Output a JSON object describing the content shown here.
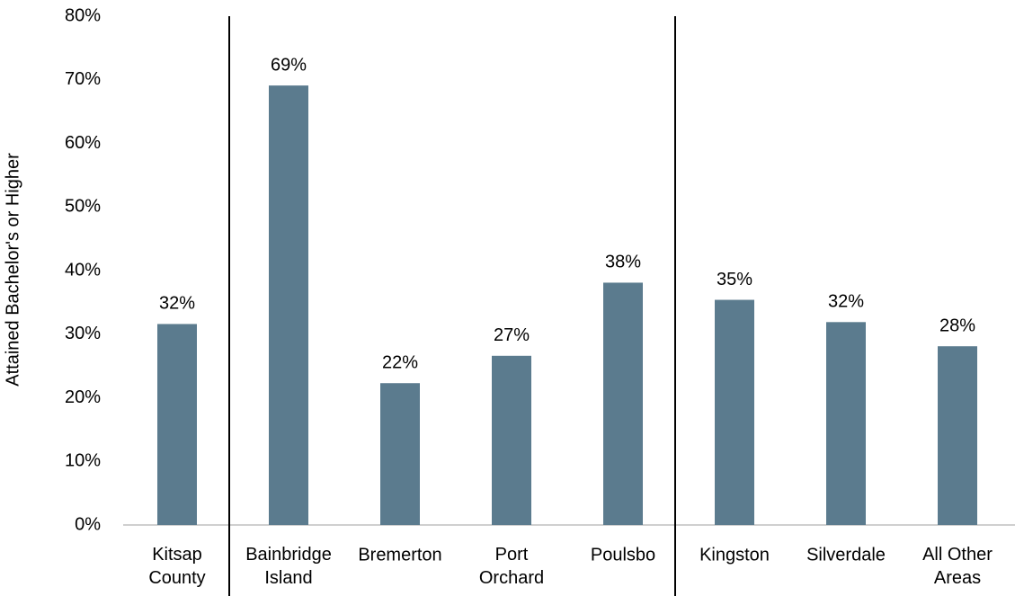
{
  "chart_data": {
    "type": "bar",
    "y_axis_label": "Attained Bachelor's or Higher",
    "categories": [
      "Kitsap\nCounty",
      "Bainbridge\nIsland",
      "Bremerton",
      "Port\nOrchard",
      "Poulsbo",
      "Kingston",
      "Silverdale",
      "All Other\nAreas"
    ],
    "values": [
      31.6,
      69.1,
      22.3,
      26.6,
      38.1,
      35.4,
      31.9,
      28.1
    ],
    "value_labels": [
      "32%",
      "69%",
      "22%",
      "27%",
      "38%",
      "35%",
      "32%",
      "28%"
    ],
    "color": "#5b7b8e",
    "ylim": [
      0,
      80
    ],
    "yticks": [
      {
        "value": 0,
        "label": "0%"
      },
      {
        "value": 10,
        "label": "10%"
      },
      {
        "value": 20,
        "label": "20%"
      },
      {
        "value": 30,
        "label": "30%"
      },
      {
        "value": 40,
        "label": "40%"
      },
      {
        "value": 50,
        "label": "50%"
      },
      {
        "value": 60,
        "label": "60%"
      },
      {
        "value": 70,
        "label": "70%"
      },
      {
        "value": 80,
        "label": "80%"
      }
    ],
    "grid": false
  }
}
